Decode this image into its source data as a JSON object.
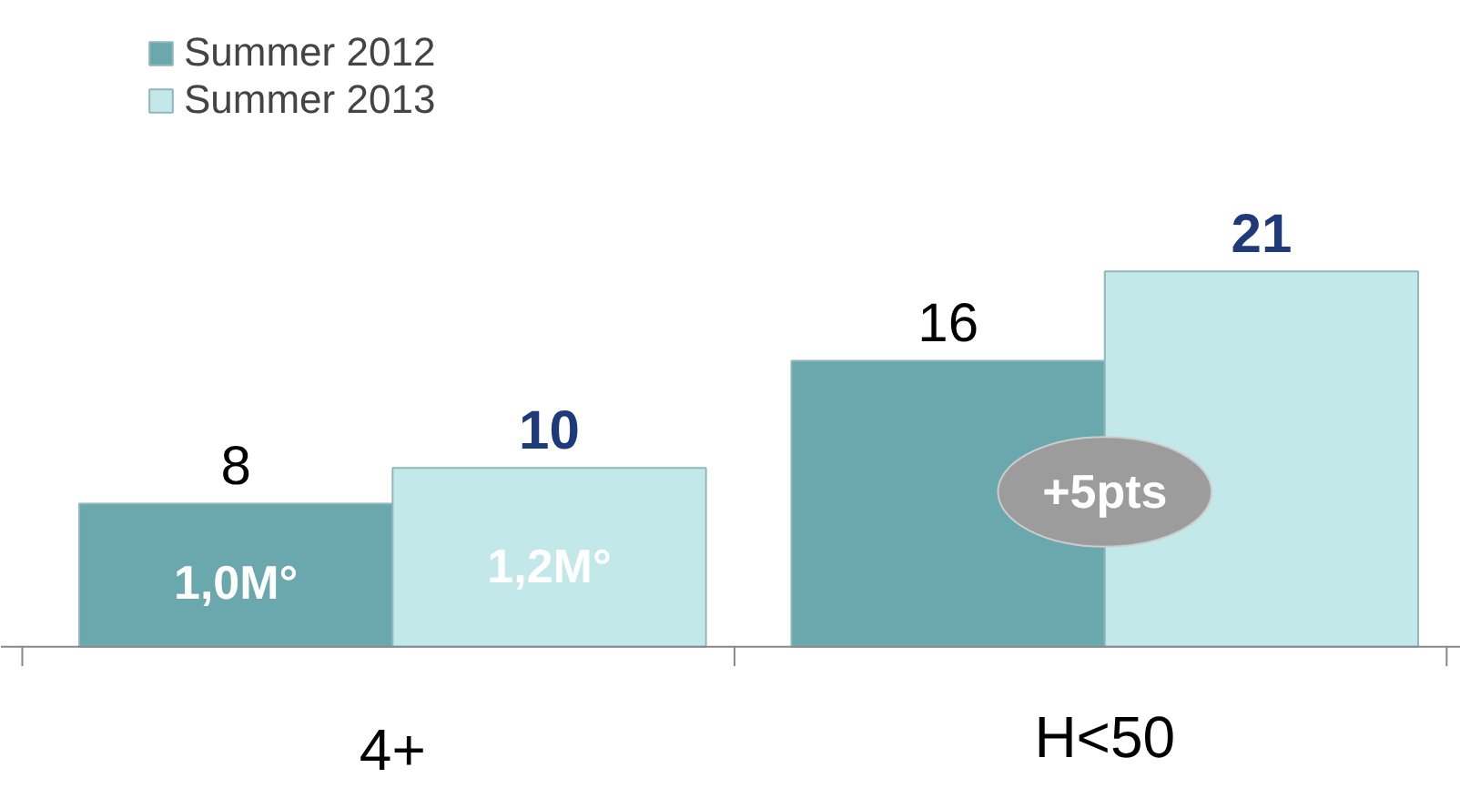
{
  "chart_data": {
    "type": "bar",
    "categories": [
      "4+",
      "H<50"
    ],
    "series": [
      {
        "name": "Summer 2012",
        "color": "#6aa8ad",
        "values": [
          8,
          16
        ]
      },
      {
        "name": "Summer 2013",
        "color": "#c3e8ea",
        "values": [
          10,
          21
        ]
      }
    ],
    "data_labels": true,
    "legend": "top left",
    "grid": false,
    "annotations": [
      "1,0M°",
      "1,2M°",
      "+5pts"
    ]
  }
}
